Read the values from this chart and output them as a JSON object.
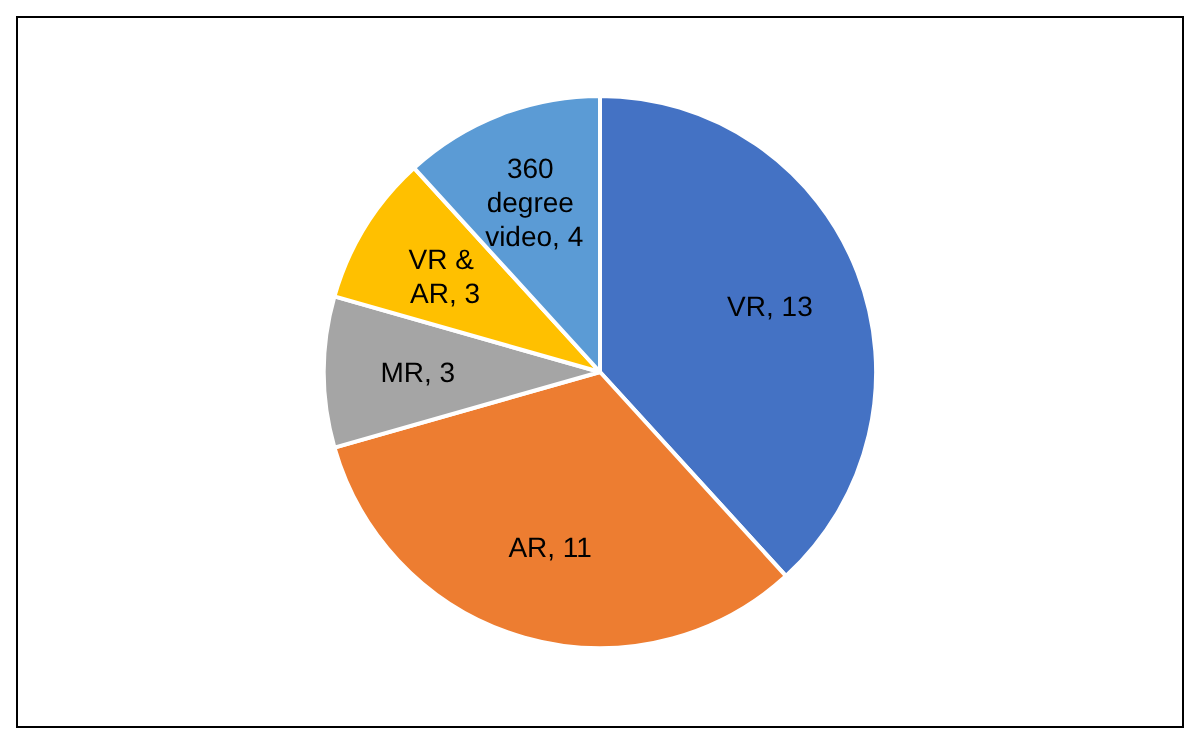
{
  "chart_data": {
    "type": "pie",
    "categories": [
      "VR",
      "AR",
      "MR",
      "VR & AR",
      "360 degree video"
    ],
    "values": [
      13,
      11,
      3,
      3,
      4
    ],
    "colors": [
      "#4472c4",
      "#ed7d31",
      "#a5a5a5",
      "#ffc000",
      "#5b9bd5"
    ],
    "value_labels": [
      "13",
      "11",
      "3",
      "3",
      "4"
    ],
    "legend": false
  }
}
